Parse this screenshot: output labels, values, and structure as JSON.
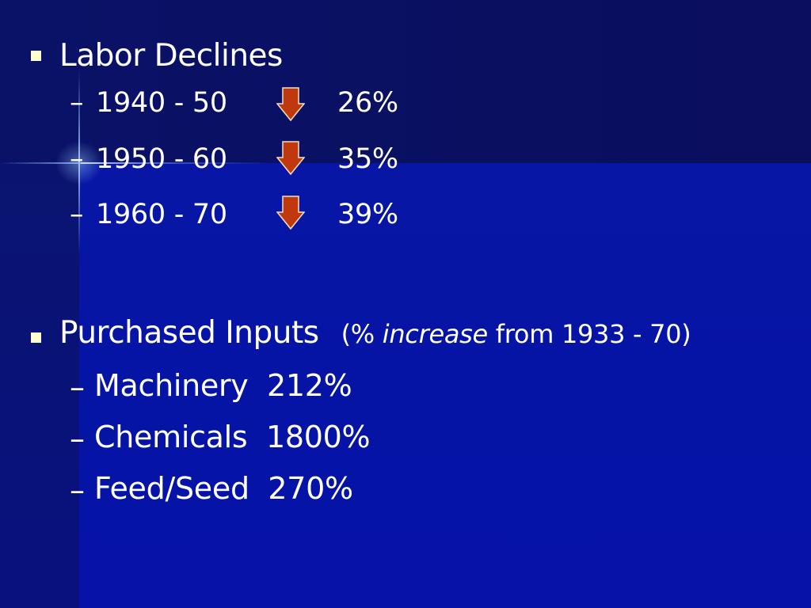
{
  "slide": {
    "labor": {
      "title": "Labor Declines",
      "rows": [
        {
          "dash": "–",
          "period": "1940 - 50",
          "icon": "down-arrow-icon",
          "value": "26%"
        },
        {
          "dash": "–",
          "period": "1950 - 60",
          "icon": "down-arrow-icon",
          "value": "35%"
        },
        {
          "dash": "–",
          "period": "1960 - 70",
          "icon": "down-arrow-icon",
          "value": "39%"
        }
      ]
    },
    "inputs": {
      "title": "Purchased Inputs",
      "note_open": "(%",
      "note_italic": "increase",
      "note_rest": "from 1933 - 70)",
      "items": [
        {
          "dash": "–",
          "label": "Machinery  212%"
        },
        {
          "dash": "–",
          "label": "Chemicals  1800%"
        },
        {
          "dash": "–",
          "label": "Feed/Seed  270%"
        }
      ]
    }
  },
  "colors": {
    "background": "#0612a8",
    "text": "#ffffff",
    "bullet": "#ffffcc",
    "arrow_fill": "#c0390e",
    "arrow_stroke": "#f0e0c0"
  }
}
